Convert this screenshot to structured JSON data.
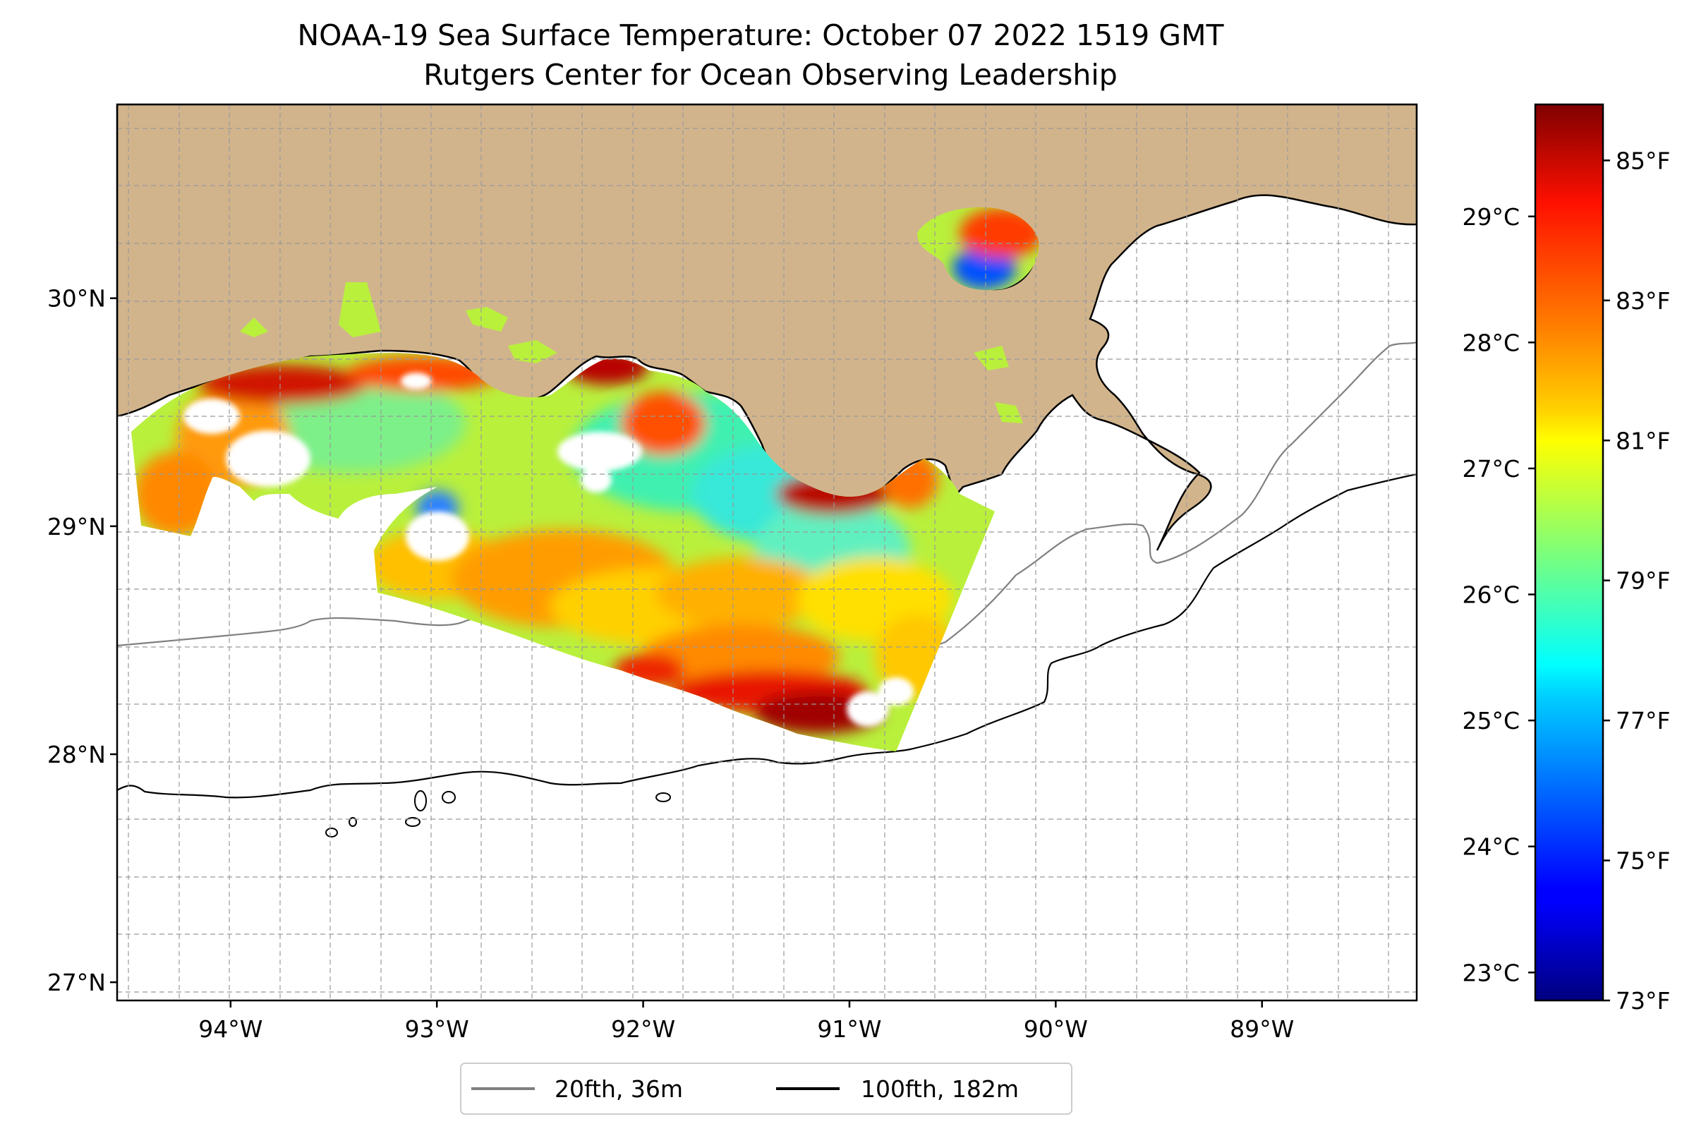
{
  "title": {
    "line1": "NOAA-19 Sea Surface Temperature: October 07 2022 1519 GMT",
    "line2": "Rutgers Center for Ocean Observing Leadership"
  },
  "map": {
    "lon_range": [
      -94.55,
      -88.25
    ],
    "lat_range": [
      26.92,
      30.85
    ],
    "lon_ticks": [
      {
        "value": -94,
        "label": "94°W"
      },
      {
        "value": -93,
        "label": "93°W"
      },
      {
        "value": -92,
        "label": "92°W"
      },
      {
        "value": -91,
        "label": "91°W"
      },
      {
        "value": -90,
        "label": "90°W"
      },
      {
        "value": -89,
        "label": "89°W"
      }
    ],
    "lat_ticks": [
      {
        "value": 30,
        "label": "30°N"
      },
      {
        "value": 29,
        "label": "29°N"
      },
      {
        "value": 28,
        "label": "28°N"
      },
      {
        "value": 27,
        "label": "27°N"
      }
    ],
    "land_color": "#d2b48c",
    "gridlines": true
  },
  "colorbar": {
    "colormap": "jet",
    "range_f": [
      73,
      85.8
    ],
    "celsius_ticks": [
      {
        "value": 23,
        "label": "23°C"
      },
      {
        "value": 24,
        "label": "24°C"
      },
      {
        "value": 25,
        "label": "25°C"
      },
      {
        "value": 26,
        "label": "26°C"
      },
      {
        "value": 27,
        "label": "27°C"
      },
      {
        "value": 28,
        "label": "28°C"
      },
      {
        "value": 29,
        "label": "29°C"
      }
    ],
    "fahrenheit_ticks": [
      {
        "value": 73,
        "label": "73°F"
      },
      {
        "value": 75,
        "label": "75°F"
      },
      {
        "value": 77,
        "label": "77°F"
      },
      {
        "value": 79,
        "label": "79°F"
      },
      {
        "value": 81,
        "label": "81°F"
      },
      {
        "value": 83,
        "label": "83°F"
      },
      {
        "value": 85,
        "label": "85°F"
      }
    ]
  },
  "legend": {
    "items": [
      {
        "label": "20fth, 36m",
        "color": "#808080"
      },
      {
        "label": "100fth, 182m",
        "color": "#000000"
      }
    ],
    "placement": "bottom-center"
  }
}
